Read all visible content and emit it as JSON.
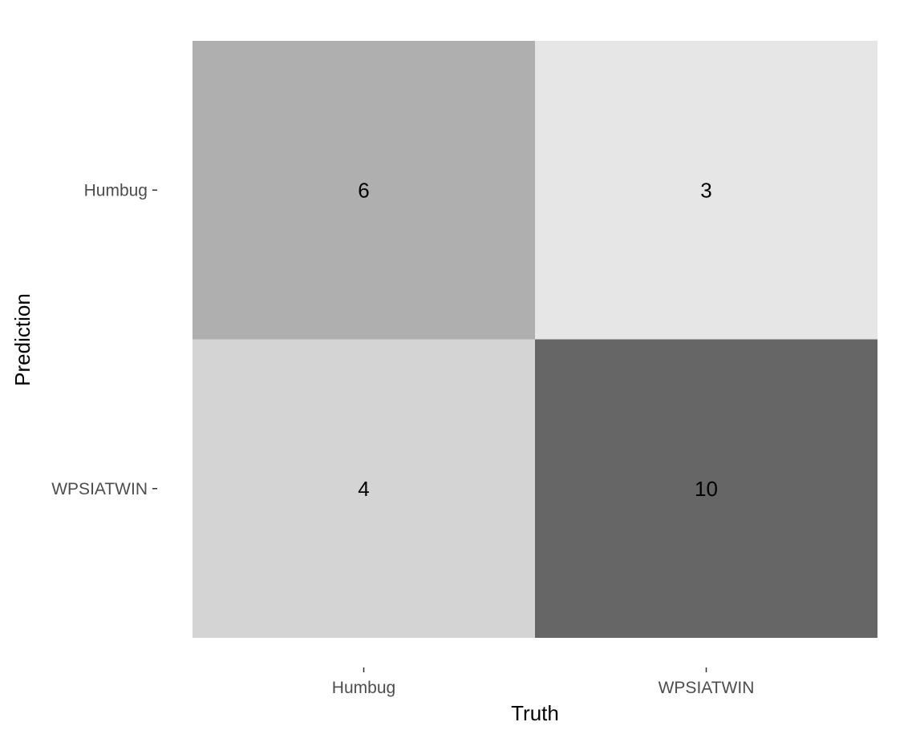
{
  "chart_data": {
    "type": "heatmap",
    "x_categories": [
      "Humbug",
      "WPSIATWIN"
    ],
    "y_categories": [
      "Humbug",
      "WPSIATWIN"
    ],
    "cells": [
      {
        "truth": "Humbug",
        "prediction": "Humbug",
        "value": 6
      },
      {
        "truth": "WPSIATWIN",
        "prediction": "Humbug",
        "value": 3
      },
      {
        "truth": "Humbug",
        "prediction": "WPSIATWIN",
        "value": 4
      },
      {
        "truth": "WPSIATWIN",
        "prediction": "WPSIATWIN",
        "value": 10
      }
    ],
    "xlabel": "Truth",
    "ylabel": "Prediction",
    "title": "",
    "grid": false,
    "legend": "none",
    "color_scale": {
      "low": "#e6e6e6",
      "high": "#666666"
    }
  }
}
